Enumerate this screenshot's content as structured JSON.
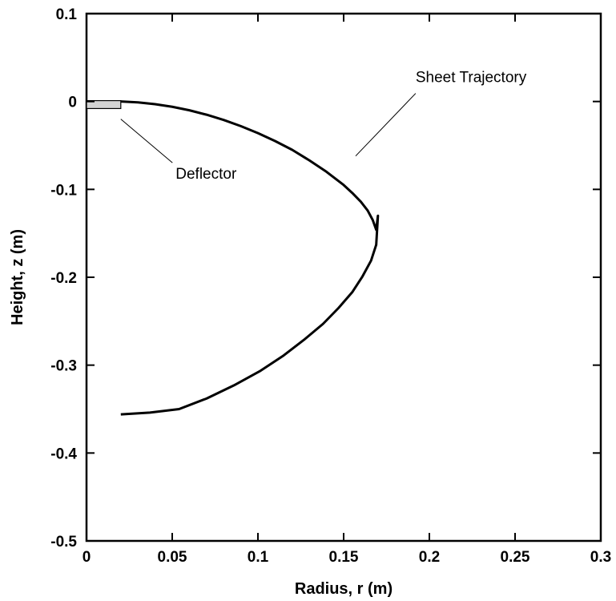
{
  "chart_data": {
    "type": "line",
    "xlabel": "Radius, r (m)",
    "ylabel": "Height, z (m)",
    "xlim": [
      0,
      0.3
    ],
    "ylim": [
      -0.5,
      0.1
    ],
    "x_ticks": [
      0,
      0.05,
      0.1,
      0.15,
      0.2,
      0.25,
      0.3
    ],
    "x_tick_labels": [
      "0",
      "0.05",
      "0.1",
      "0.15",
      "0.2",
      "0.25",
      "0.3"
    ],
    "y_ticks": [
      0.1,
      0,
      -0.1,
      -0.2,
      -0.3,
      -0.4,
      -0.5
    ],
    "y_tick_labels": [
      "0.1",
      "0",
      "-0.1",
      "-0.2",
      "-0.3",
      "-0.4",
      "-0.5"
    ],
    "grid": false,
    "series": [
      {
        "name": "Sheet Trajectory",
        "x": [
          0.02,
          0.03,
          0.04,
          0.05,
          0.06,
          0.07,
          0.08,
          0.09,
          0.1,
          0.11,
          0.12,
          0.13,
          0.14,
          0.15,
          0.155,
          0.16,
          0.164,
          0.167,
          0.169,
          0.17,
          0.169,
          0.166,
          0.161,
          0.155,
          0.147,
          0.138,
          0.127,
          0.115,
          0.101,
          0.086,
          0.07,
          0.054,
          0.037,
          0.02
        ],
        "y": [
          0.0,
          -0.001,
          -0.003,
          -0.006,
          -0.01,
          -0.015,
          -0.021,
          -0.028,
          -0.036,
          -0.045,
          -0.055,
          -0.067,
          -0.08,
          -0.095,
          -0.104,
          -0.114,
          -0.124,
          -0.135,
          -0.146,
          -0.13,
          -0.163,
          -0.181,
          -0.199,
          -0.217,
          -0.235,
          -0.253,
          -0.271,
          -0.289,
          -0.307,
          -0.323,
          -0.338,
          -0.35,
          -0.354,
          -0.356
        ]
      }
    ],
    "deflector": {
      "x": [
        0,
        0.02
      ],
      "y": [
        -0.008,
        0.001
      ],
      "color": "#d3d3d3"
    },
    "annotations": [
      {
        "text": "Sheet Trajectory",
        "x": 0.192,
        "y": 0.022,
        "pointer_to": [
          0.157,
          -0.062
        ]
      },
      {
        "text": "Deflector",
        "x": 0.052,
        "y": -0.088,
        "pointer_to": [
          0.02,
          -0.02
        ]
      }
    ]
  }
}
